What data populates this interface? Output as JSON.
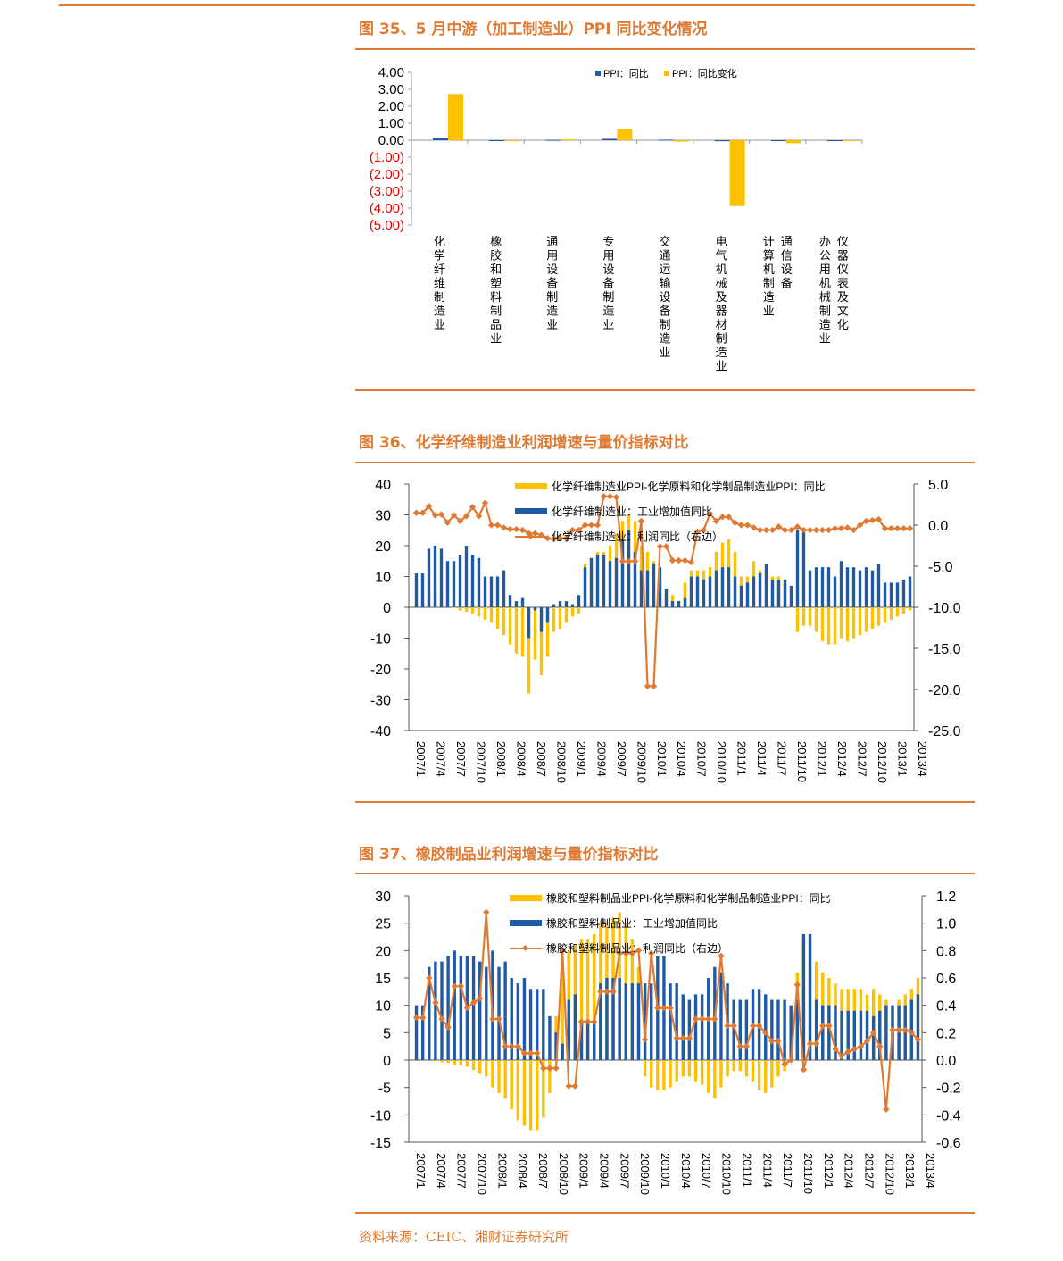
{
  "source": "资料来源：CEIC、湘财证券研究所",
  "fig35": {
    "title": "图 35、5 月中游（加工制造业）PPI 同比变化情况",
    "chart_data": {
      "type": "bar",
      "legend": [
        "PPI：同比",
        "PPI：同比变化"
      ],
      "colors": [
        "#1F5AA6",
        "#FFC000"
      ],
      "negative_label_color": "#E00000",
      "ylim": [
        -5,
        4
      ],
      "yticks": [
        "4.00",
        "3.00",
        "2.00",
        "1.00",
        "0.00",
        "(1.00)",
        "(2.00)",
        "(3.00)",
        "(4.00)",
        "(5.00)"
      ],
      "categories": [
        "化学纤维制造业",
        "橡胶和塑料制品业",
        "通用设备制造业",
        "专用设备制造业",
        "交通运输设备制造业",
        "电气机械及器材制造业",
        "通信设备　计算机制造业",
        "仪器仪表及文化　办公用机械制造业"
      ],
      "series": [
        {
          "name": "PPI：同比",
          "values": [
            0.12,
            -0.05,
            0.02,
            0.08,
            0.03,
            -0.06,
            0.0,
            0.0
          ]
        },
        {
          "name": "PPI：同比变化",
          "values": [
            2.72,
            -0.05,
            0.05,
            0.68,
            -0.08,
            -3.88,
            -0.18,
            0.0
          ]
        }
      ]
    }
  },
  "fig36": {
    "title": "图 36、化学纤维制造业利润增速与量价指标对比",
    "chart_data": {
      "type": "bar",
      "legend": [
        "化学纤维制造业PPI-化学原料和化学制品制造业PPI：同比",
        "化学纤维制造业：工业增加值同比",
        "化学纤维制造业：利润同比（右边）"
      ],
      "colors": [
        "#FFC000",
        "#1F5AA6",
        "#E07A32"
      ],
      "ylim_left": [
        -40,
        40
      ],
      "ylim_right": [
        -25,
        5
      ],
      "yticks_left": [
        "40",
        "30",
        "20",
        "10",
        "0",
        "-10",
        "-20",
        "-30",
        "-40"
      ],
      "yticks_right": [
        "5.0",
        "0.0",
        "-5.0",
        "-10.0",
        "-15.0",
        "-20.0",
        "-25.0"
      ],
      "xticks": [
        "2007/1",
        "2007/4",
        "2007/7",
        "2007/10",
        "2008/1",
        "2008/4",
        "2008/7",
        "2008/10",
        "2009/1",
        "2009/4",
        "2009/7",
        "2009/10",
        "2010/1",
        "2010/4",
        "2010/7",
        "2010/10",
        "2011/1",
        "2011/4",
        "2011/7",
        "2011/10",
        "2012/1",
        "2012/4",
        "2012/7",
        "2012/10",
        "2013/1",
        "2013/4"
      ],
      "series": [
        {
          "name": "化学纤维制造业PPI-化学原料和化学制品制造业PPI：同比",
          "values": [
            1,
            2,
            3,
            5,
            4,
            2,
            0,
            -1,
            -1.5,
            -2,
            -3,
            -4,
            -5,
            -7,
            -9,
            -12,
            -15,
            -16,
            -28,
            -17,
            -22,
            -16,
            -8,
            -7,
            -5,
            -3,
            -2,
            14,
            16,
            18,
            18,
            20,
            24,
            28,
            30,
            28,
            20,
            18,
            15,
            8,
            6,
            4,
            2,
            8,
            12,
            12,
            12,
            13,
            18,
            21,
            22,
            18,
            10,
            10,
            15,
            12,
            12,
            10,
            10,
            9,
            0,
            -8,
            -6,
            -6,
            -8,
            -11,
            -12,
            -12,
            -10,
            -11,
            -10,
            -9,
            -8,
            -7,
            -6,
            -5,
            -4,
            -3,
            -2,
            -1
          ]
        },
        {
          "name": "化学纤维制造业：工业增加值同比",
          "values": [
            11,
            11,
            19,
            20,
            19,
            15,
            15,
            17,
            20,
            17,
            16,
            10,
            10,
            10,
            12,
            4,
            2,
            3,
            -10,
            -1,
            -8,
            -5,
            1,
            2,
            2,
            1,
            4,
            13,
            16,
            17,
            17,
            15,
            16,
            22,
            25,
            18,
            12,
            12,
            14,
            13,
            6,
            2,
            2,
            3,
            10,
            10,
            9,
            10,
            12,
            13,
            13,
            10,
            7,
            8,
            10,
            11,
            14,
            9,
            9,
            9,
            7,
            25,
            25,
            12,
            13,
            13,
            13,
            10,
            15,
            13,
            13,
            12,
            13,
            12,
            14,
            8,
            8,
            8,
            9,
            10
          ]
        },
        {
          "name": "化学纤维制造业：利润同比（右边）",
          "values": [
            1.5,
            1.5,
            2.3,
            1.2,
            1.3,
            0.3,
            1.2,
            0.5,
            1.1,
            2.2,
            1.1,
            2.7,
            0,
            0,
            -0.3,
            -0.5,
            -0.5,
            -0.6,
            -1,
            -1,
            -1.2,
            -1.6,
            -1.7,
            -1.6,
            -1.6,
            -0.6,
            -0.6,
            0,
            0,
            0,
            3.5,
            3.5,
            3.4,
            -4.4,
            -4.4,
            -4.4,
            0.5,
            -19.6,
            -19.6,
            -2.6,
            -2.6,
            -4.3,
            -4.3,
            -4.3,
            -4.5,
            -0.8,
            -0.6,
            1.4,
            0.5,
            1,
            1,
            0.3,
            0,
            0,
            -0.3,
            -0.6,
            -0.6,
            -0.6,
            -0.2,
            -0.6,
            -0.6,
            -0.2,
            -0.6,
            -0.6,
            -0.6,
            -0.6,
            -0.6,
            -0.4,
            -0.4,
            -0.3,
            -0.6,
            0,
            0.5,
            0.6,
            0.7,
            -0.4,
            -0.4,
            -0.4,
            -0.4,
            -0.4
          ]
        }
      ]
    }
  },
  "fig37": {
    "title": "图 37、橡胶制品业利润增速与量价指标对比",
    "chart_data": {
      "type": "bar",
      "legend": [
        "橡胶和塑料制品业PPI-化学原料和化学制品制造业PPI：同比",
        "橡胶和塑料制品业：工业增加值同比",
        "橡胶和塑料制品业：利润同比（右边）"
      ],
      "colors": [
        "#FFC000",
        "#1F5AA6",
        "#E07A32"
      ],
      "ylim_left": [
        -15,
        30
      ],
      "ylim_right": [
        -0.6,
        1.2
      ],
      "yticks_left": [
        "30",
        "25",
        "20",
        "15",
        "10",
        "5",
        "0",
        "-5",
        "-10",
        "-15"
      ],
      "yticks_right": [
        "1.2",
        "1.0",
        "0.8",
        "0.6",
        "0.4",
        "0.2",
        "0.0",
        "-0.2",
        "-0.4",
        "-0.6"
      ],
      "xticks": [
        "2007/1",
        "2007/4",
        "2007/7",
        "2007/10",
        "2008/1",
        "2008/4",
        "2008/7",
        "2008/10",
        "2009/1",
        "2009/4",
        "2009/7",
        "2009/10",
        "2010/1",
        "2010/4",
        "2010/7",
        "2010/10",
        "2011/1",
        "2011/4",
        "2011/7",
        "2011/10",
        "2012/1",
        "2012/4",
        "2012/7",
        "2012/10",
        "2013/1",
        "2013/4"
      ],
      "series": [
        {
          "name": "橡胶和塑料制品业PPI-化学原料和化学制品制造业PPI：同比",
          "values": [
            0.5,
            0.3,
            0.1,
            -0.2,
            -0.4,
            -0.5,
            -0.8,
            -1,
            -1.2,
            -1.8,
            -2.5,
            -3,
            -5,
            -6,
            -7,
            -9,
            -11,
            -12,
            -12.8,
            -12.8,
            -10.5,
            -6,
            8,
            16,
            20,
            21,
            22,
            22,
            23,
            25,
            25,
            26,
            27,
            25,
            22,
            17,
            -3,
            -5,
            -5.5,
            -5.5,
            -5,
            -4,
            -3,
            -3,
            -4,
            -4.5,
            -6,
            -7,
            -5,
            -3,
            -2,
            -2,
            -3,
            -4,
            -5.5,
            -6,
            -5,
            -3,
            -2,
            0,
            16,
            22,
            22,
            18,
            16,
            15,
            14,
            13,
            13,
            13,
            13,
            12,
            13,
            12,
            11,
            10,
            11,
            12,
            13,
            15
          ]
        },
        {
          "name": "橡胶和塑料制品业：工业增加值同比",
          "values": [
            10,
            10,
            17,
            18,
            18,
            19,
            20,
            19,
            19,
            19,
            18,
            17,
            20,
            17,
            18,
            15,
            14,
            15,
            13,
            13,
            13,
            8,
            5,
            3,
            11,
            12,
            7,
            7,
            7,
            14,
            15,
            15,
            15,
            14,
            14,
            14,
            14,
            14,
            19,
            19,
            14,
            14,
            12,
            11,
            12,
            12,
            15,
            17,
            16,
            14,
            11,
            11,
            11,
            13,
            13,
            12,
            11,
            11,
            11,
            10,
            11,
            23,
            23,
            11,
            10,
            10,
            10,
            9,
            9,
            9,
            9,
            9,
            8,
            9,
            10,
            10,
            10,
            10,
            11,
            12
          ]
        },
        {
          "name": "橡胶和塑料制品业：利润同比（右边）",
          "values": [
            0.31,
            0.31,
            0.6,
            0.42,
            0.3,
            0.24,
            0.54,
            0.54,
            0.38,
            0.42,
            0.45,
            1.08,
            0.3,
            0.3,
            0.1,
            0.1,
            0.1,
            0.05,
            0.05,
            0.05,
            -0.06,
            -0.06,
            -0.06,
            0.8,
            -0.19,
            -0.19,
            0.28,
            0.28,
            0.28,
            0.5,
            0.5,
            0.5,
            0.78,
            0.78,
            0.78,
            0.8,
            0.15,
            0.78,
            0.38,
            0.38,
            0.38,
            0.16,
            0.16,
            0.16,
            0.3,
            0.3,
            0.3,
            0.3,
            0.76,
            0.25,
            0.25,
            0.1,
            0.1,
            0.25,
            0.25,
            0.2,
            0.14,
            0.14,
            -0.03,
            0,
            0.55,
            -0.07,
            0.12,
            0.12,
            0.25,
            0.25,
            0.08,
            0.03,
            0.06,
            0.08,
            0.1,
            0.14,
            0.2,
            0.1,
            -0.36,
            0.22,
            0.22,
            0.22,
            0.2,
            0.15
          ]
        }
      ]
    }
  }
}
